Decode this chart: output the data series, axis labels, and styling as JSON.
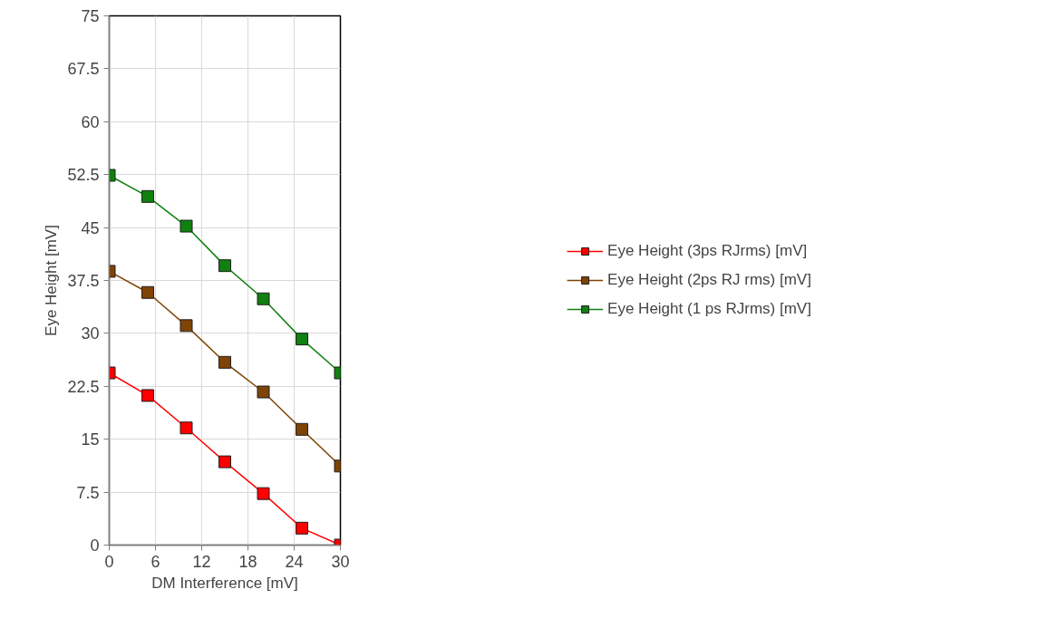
{
  "chart_data": {
    "type": "line",
    "xlabel": "DM Interference [mV]",
    "ylabel": "Eye Height [mV]",
    "x": [
      0,
      5,
      10,
      15,
      20,
      25,
      30
    ],
    "xlim": [
      0,
      30
    ],
    "xticks": [
      0,
      6,
      12,
      18,
      24,
      30
    ],
    "ylim": [
      0,
      75
    ],
    "yticks": [
      0,
      7.5,
      15,
      22.5,
      30,
      37.5,
      45,
      52.5,
      60,
      67.5,
      75
    ],
    "grid": true,
    "legend": "right",
    "marker": "square",
    "line_style": "solid",
    "series": [
      {
        "name": "Eye Height (3ps RJrms) [mV]",
        "color": "#ff0000",
        "values": [
          24.4,
          21.2,
          16.6,
          11.8,
          7.3,
          2.4,
          0
        ]
      },
      {
        "name": "Eye Height (2ps RJ rms) [mV]",
        "color": "#7f4306",
        "values": [
          38.8,
          35.8,
          31.1,
          25.9,
          21.7,
          16.4,
          11.2
        ]
      },
      {
        "name": "Eye Height (1 ps RJrms) [mV]",
        "color": "#108010",
        "values": [
          52.4,
          49.4,
          45.2,
          39.6,
          34.9,
          29.2,
          24.4
        ]
      }
    ]
  }
}
